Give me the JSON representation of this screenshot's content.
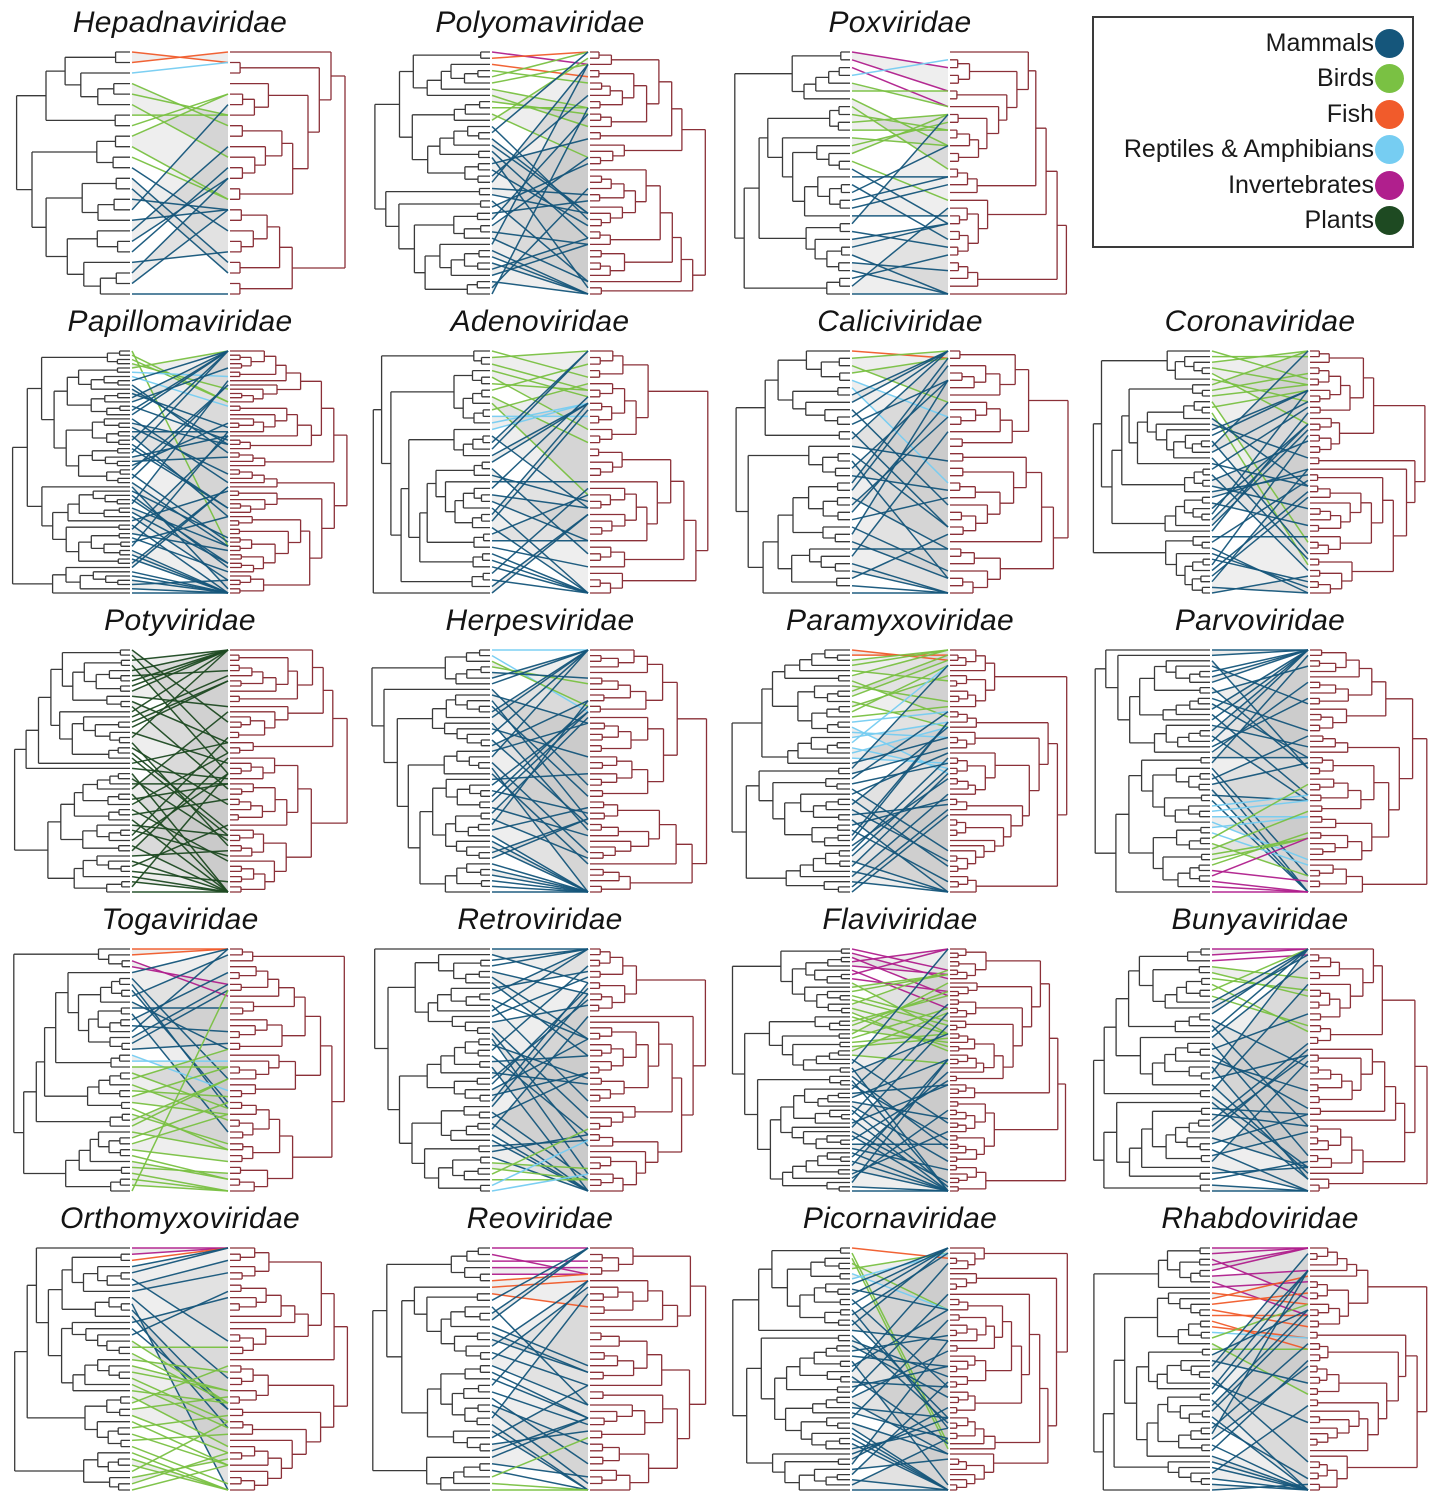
{
  "figure": {
    "description": "Cophylogeny tanglegrams of host trees (left, black) and virus trees (right, dark red) for 19 virus families; association lines colored by host group",
    "background": "#ffffff",
    "host_tree_color": "#3a3a3a",
    "virus_tree_color": "#8b3038",
    "shade_color": "#c9c9c9"
  },
  "legend": {
    "items": [
      {
        "label": "Mammals",
        "color": "#15567b"
      },
      {
        "label": "Birds",
        "color": "#7ac143"
      },
      {
        "label": "Fish",
        "color": "#f15b2b"
      },
      {
        "label": "Reptiles & Amphibians",
        "color": "#76cdf2"
      },
      {
        "label": "Invertebrates",
        "color": "#b01f8d"
      },
      {
        "label": "Plants",
        "color": "#1e4a22"
      }
    ]
  },
  "groups": {
    "mammals": {
      "label": "Mammals",
      "color": "#15567b",
      "spread": 0.95
    },
    "birds": {
      "label": "Birds",
      "color": "#7ac143",
      "spread": 0.38
    },
    "fish": {
      "label": "Fish",
      "color": "#f15b2b",
      "spread": 0.22
    },
    "reptiles_amphibians": {
      "label": "Reptiles & Amphibians",
      "color": "#76cdf2",
      "spread": 0.35
    },
    "invertebrates": {
      "label": "Invertebrates",
      "color": "#b01f8d",
      "spread": 0.3
    },
    "plants": {
      "label": "Plants",
      "color": "#1e4a22",
      "spread": 0.95
    }
  },
  "panels": [
    {
      "title": "Hepadnaviridae",
      "n_tips": 24,
      "links": [
        {
          "group": "fish",
          "count": 2
        },
        {
          "group": "reptiles_amphibians",
          "count": 1
        },
        {
          "group": "birds",
          "count": 8
        },
        {
          "group": "mammals",
          "count": 13
        }
      ]
    },
    {
      "title": "Polyomaviridae",
      "n_tips": 40,
      "links": [
        {
          "group": "invertebrates",
          "count": 1
        },
        {
          "group": "fish",
          "count": 2
        },
        {
          "group": "birds",
          "count": 9
        },
        {
          "group": "mammals",
          "count": 28
        }
      ]
    },
    {
      "title": "Poxviridae",
      "n_tips": 32,
      "links": [
        {
          "group": "invertebrates",
          "count": 3
        },
        {
          "group": "reptiles_amphibians",
          "count": 1
        },
        {
          "group": "birds",
          "count": 11
        },
        {
          "group": "mammals",
          "count": 17
        }
      ]
    },
    {
      "title": "Papillomaviridae",
      "n_tips": 58,
      "links": [
        {
          "group": "birds",
          "count": 5
        },
        {
          "group": "reptiles_amphibians",
          "count": 2
        },
        {
          "group": "mammals",
          "count": 51
        }
      ]
    },
    {
      "title": "Adenoviridae",
      "n_tips": 38,
      "links": [
        {
          "group": "birds",
          "count": 10
        },
        {
          "group": "reptiles_amphibians",
          "count": 3
        },
        {
          "group": "mammals",
          "count": 25
        }
      ]
    },
    {
      "title": "Caliciviridae",
      "n_tips": 34,
      "links": [
        {
          "group": "fish",
          "count": 1
        },
        {
          "group": "birds",
          "count": 3
        },
        {
          "group": "reptiles_amphibians",
          "count": 2
        },
        {
          "group": "mammals",
          "count": 28
        }
      ]
    },
    {
      "title": "Coronaviridae",
      "n_tips": 44,
      "links": [
        {
          "group": "birds",
          "count": 12
        },
        {
          "group": "mammals",
          "count": 32
        }
      ]
    },
    {
      "title": "Potyviridae",
      "n_tips": 48,
      "links": [
        {
          "group": "plants",
          "count": 48
        }
      ]
    },
    {
      "title": "Herpesviridae",
      "n_tips": 44,
      "links": [
        {
          "group": "reptiles_amphibians",
          "count": 2
        },
        {
          "group": "birds",
          "count": 2
        },
        {
          "group": "mammals",
          "count": 40
        }
      ]
    },
    {
      "title": "Paramyxoviridae",
      "n_tips": 48,
      "links": [
        {
          "group": "fish",
          "count": 2
        },
        {
          "group": "birds",
          "count": 12
        },
        {
          "group": "reptiles_amphibians",
          "count": 8
        },
        {
          "group": "mammals",
          "count": 26
        }
      ]
    },
    {
      "title": "Parvoviridae",
      "n_tips": 46,
      "links": [
        {
          "group": "mammals",
          "count": 29
        },
        {
          "group": "reptiles_amphibians",
          "count": 6
        },
        {
          "group": "birds",
          "count": 6
        },
        {
          "group": "invertebrates",
          "count": 5
        }
      ]
    },
    {
      "title": "Togaviridae",
      "n_tips": 42,
      "links": [
        {
          "group": "fish",
          "count": 2
        },
        {
          "group": "invertebrates",
          "count": 2
        },
        {
          "group": "mammals",
          "count": 14
        },
        {
          "group": "reptiles_amphibians",
          "count": 2
        },
        {
          "group": "birds",
          "count": 22
        }
      ]
    },
    {
      "title": "Retroviridae",
      "n_tips": 44,
      "links": [
        {
          "group": "mammals",
          "count": 38
        },
        {
          "group": "birds",
          "count": 4
        },
        {
          "group": "reptiles_amphibians",
          "count": 2
        }
      ]
    },
    {
      "title": "Flaviviridae",
      "n_tips": 58,
      "links": [
        {
          "group": "invertebrates",
          "count": 8
        },
        {
          "group": "birds",
          "count": 18
        },
        {
          "group": "mammals",
          "count": 32
        }
      ]
    },
    {
      "title": "Bunyaviridae",
      "n_tips": 42,
      "links": [
        {
          "group": "invertebrates",
          "count": 3
        },
        {
          "group": "birds",
          "count": 6
        },
        {
          "group": "mammals",
          "count": 33
        }
      ]
    },
    {
      "title": "Orthomyxoviridae",
      "n_tips": 40,
      "links": [
        {
          "group": "invertebrates",
          "count": 2
        },
        {
          "group": "fish",
          "count": 1
        },
        {
          "group": "mammals",
          "count": 12
        },
        {
          "group": "birds",
          "count": 25
        }
      ]
    },
    {
      "title": "Reoviridae",
      "n_tips": 38,
      "links": [
        {
          "group": "invertebrates",
          "count": 5
        },
        {
          "group": "fish",
          "count": 3
        },
        {
          "group": "mammals",
          "count": 27
        },
        {
          "group": "birds",
          "count": 3
        }
      ]
    },
    {
      "title": "Picornaviridae",
      "n_tips": 48,
      "links": [
        {
          "group": "fish",
          "count": 1
        },
        {
          "group": "birds",
          "count": 4
        },
        {
          "group": "reptiles_amphibians",
          "count": 2
        },
        {
          "group": "mammals",
          "count": 41
        }
      ]
    },
    {
      "title": "Rhabdoviridae",
      "n_tips": 44,
      "links": [
        {
          "group": "invertebrates",
          "count": 8
        },
        {
          "group": "fish",
          "count": 7
        },
        {
          "group": "reptiles_amphibians",
          "count": 1
        },
        {
          "group": "birds",
          "count": 3
        },
        {
          "group": "mammals",
          "count": 25
        }
      ]
    }
  ]
}
